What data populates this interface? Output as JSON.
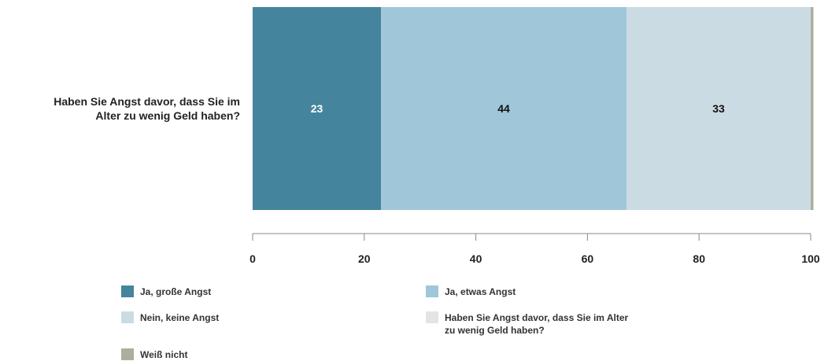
{
  "chart_data": {
    "type": "bar",
    "orientation": "horizontal",
    "stacked": true,
    "categories": [
      "Haben Sie Angst davor, dass Sie im Alter zu wenig Geld haben?"
    ],
    "category_label_lines": [
      "Haben Sie Angst davor, dass Sie im",
      "Alter zu wenig Geld haben?"
    ],
    "series": [
      {
        "name": "Ja, große Angst",
        "values": [
          23
        ],
        "color": "#44849c",
        "label_color": "#ffffff"
      },
      {
        "name": "Ja, etwas Angst",
        "values": [
          44
        ],
        "color": "#a0c6d9",
        "label_color": "#111111"
      },
      {
        "name": "Nein, keine Angst",
        "values": [
          33
        ],
        "color": "#cbdbe3",
        "label_color": "#111111"
      },
      {
        "name": "Weiß nicht",
        "values": [
          0.5
        ],
        "color": "#aeae9e",
        "label_color": "#111111",
        "show_label": false
      }
    ],
    "xlim": [
      0,
      100
    ],
    "xticks": [
      0,
      20,
      40,
      60,
      80,
      100
    ],
    "grid": false,
    "legend": {
      "placement": "bottom",
      "items": [
        {
          "label": "Ja, große Angst",
          "color": "#44849c"
        },
        {
          "label": "Ja, etwas Angst",
          "color": "#a0c6d9"
        },
        {
          "label": "Nein, keine Angst",
          "color": "#cbdbe3"
        },
        {
          "label_lines": [
            "Haben Sie Angst davor, dass Sie im Alter",
            "zu wenig Geld haben?"
          ],
          "color": "#e4e4e4"
        },
        {
          "label": "Weiß nicht",
          "color": "#aeae9e"
        }
      ]
    }
  }
}
